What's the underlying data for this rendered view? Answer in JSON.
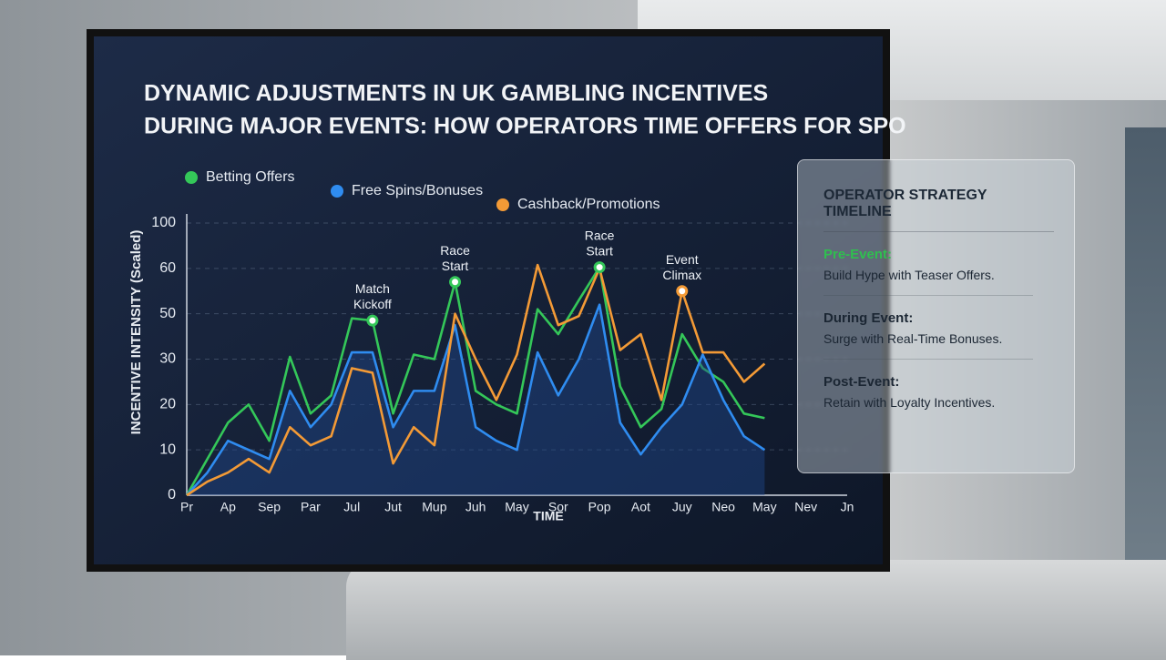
{
  "chart_data": {
    "type": "line",
    "title": [
      "DYNAMIC ADJUSTMENTS IN UK GAMBLING INCENTIVES",
      "DURING MAJOR EVENTS: HOW OPERATORS TIME OFFERS FOR SPO"
    ],
    "y_label": "INCENTIVE INTENSITY (Scaled)",
    "x_label": "TIME",
    "categories": [
      "Pr",
      null,
      "Ap",
      null,
      "Sep",
      null,
      "Par",
      null,
      "Jul",
      null,
      "Jut",
      null,
      "Mup",
      null,
      "Juh",
      null,
      "May",
      null,
      "Sor",
      null,
      "Pop",
      null,
      "Aot",
      null,
      "Juy",
      null,
      "Neo",
      null,
      "May",
      null,
      "Nev",
      null,
      "Jn"
    ],
    "ylim": [
      0,
      100
    ],
    "yticks": [
      0,
      10,
      20,
      30,
      50,
      60,
      100
    ],
    "grid": true,
    "series": [
      {
        "name": "Betting Offers",
        "color": "#34c759",
        "values": [
          0,
          8,
          16,
          20,
          12,
          31,
          18,
          22,
          48,
          47,
          18,
          32,
          30,
          57,
          23,
          20,
          18,
          51,
          41,
          53,
          61,
          24,
          15,
          19,
          41,
          28,
          25,
          18,
          17,
          null,
          null,
          null,
          null
        ]
      },
      {
        "name": "Free Spins/Bonuses",
        "color": "#2f8cf0",
        "values": [
          0,
          5,
          12,
          10,
          8,
          23,
          15,
          20,
          33,
          33,
          15,
          23,
          23,
          45,
          15,
          12,
          10,
          33,
          22,
          30,
          52,
          16,
          9,
          15,
          20,
          32,
          21,
          13,
          10,
          null,
          null,
          null,
          null
        ]
      },
      {
        "name": "Cashback/Promotions",
        "color": "#f39a36",
        "values": [
          0,
          3,
          5,
          8,
          5,
          15,
          11,
          13,
          28,
          27,
          7,
          15,
          11,
          50,
          30,
          21,
          32,
          63,
          45,
          49,
          60,
          34,
          41,
          21,
          55,
          33,
          33,
          25,
          29,
          null,
          null,
          null,
          null
        ]
      }
    ],
    "annotations": [
      "Match Kickoff",
      "Race Start",
      "Race Start",
      "Event Climax"
    ]
  },
  "panel": {
    "title": "OPERATOR STRATEGY TIMELINE",
    "items": [
      {
        "label": "Pre-Event:",
        "text": "Build Hype with Teaser Offers."
      },
      {
        "label": "During Event:",
        "text": "Surge with Real-Time Bonuses."
      },
      {
        "label": "Post-Event:",
        "text": "Retain with Loyalty Incentives."
      }
    ]
  }
}
